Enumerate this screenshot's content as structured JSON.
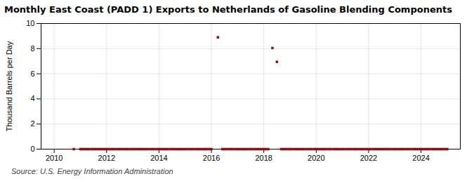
{
  "chart_data": {
    "type": "scatter",
    "title": "Monthly East Coast (PADD 1) Exports to Netherlands of Gasoline Blending Components",
    "ylabel": "Thousand Barrels per Day",
    "source": "Source: U.S. Energy Information Administration",
    "color": "#8b1010",
    "marker": "square",
    "grid": true,
    "xlim": [
      2009.5,
      2025.5
    ],
    "ylim": [
      0,
      10
    ],
    "xticks": [
      2010,
      2012,
      2014,
      2016,
      2018,
      2020,
      2022,
      2024
    ],
    "yticks": [
      0,
      2,
      4,
      6,
      8,
      10
    ],
    "x": [
      2010.75,
      2011.0,
      2011.08,
      2011.17,
      2011.25,
      2011.33,
      2011.42,
      2011.5,
      2011.58,
      2011.67,
      2011.75,
      2011.83,
      2011.92,
      2012.0,
      2012.08,
      2012.17,
      2012.25,
      2012.33,
      2012.42,
      2012.5,
      2012.58,
      2012.67,
      2012.75,
      2012.83,
      2012.92,
      2013.0,
      2013.08,
      2013.17,
      2013.25,
      2013.33,
      2013.42,
      2013.5,
      2013.58,
      2013.67,
      2013.75,
      2013.83,
      2013.92,
      2014.0,
      2014.08,
      2014.17,
      2014.25,
      2014.33,
      2014.42,
      2014.5,
      2014.58,
      2014.67,
      2014.75,
      2014.83,
      2014.92,
      2015.0,
      2015.08,
      2015.17,
      2015.25,
      2015.33,
      2015.42,
      2015.5,
      2015.58,
      2015.67,
      2015.75,
      2015.83,
      2015.92,
      2016.0,
      2016.25,
      2016.42,
      2016.5,
      2016.58,
      2016.67,
      2016.75,
      2016.83,
      2016.92,
      2017.0,
      2017.08,
      2017.17,
      2017.25,
      2017.33,
      2017.42,
      2017.5,
      2017.58,
      2017.67,
      2017.75,
      2017.83,
      2017.92,
      2018.0,
      2018.08,
      2018.17,
      2018.33,
      2018.5,
      2018.67,
      2018.75,
      2018.83,
      2018.92,
      2019.0,
      2019.08,
      2019.17,
      2019.25,
      2019.33,
      2019.42,
      2019.5,
      2019.58,
      2019.67,
      2019.75,
      2019.83,
      2019.92,
      2020.0,
      2020.08,
      2020.17,
      2020.25,
      2020.33,
      2020.42,
      2020.5,
      2020.58,
      2020.67,
      2020.75,
      2020.83,
      2020.92,
      2021.0,
      2021.08,
      2021.17,
      2021.25,
      2021.33,
      2021.42,
      2021.5,
      2021.58,
      2021.67,
      2021.75,
      2021.83,
      2021.92,
      2022.0,
      2022.08,
      2022.17,
      2022.25,
      2022.33,
      2022.42,
      2022.5,
      2022.58,
      2022.67,
      2022.75,
      2022.83,
      2022.92,
      2023.0,
      2023.08,
      2023.17,
      2023.25,
      2023.33,
      2023.42,
      2023.5,
      2023.58,
      2023.67,
      2023.75,
      2023.83,
      2023.92,
      2024.0,
      2024.08,
      2024.17,
      2024.25,
      2024.33,
      2024.42,
      2024.5,
      2024.58,
      2024.67,
      2024.75,
      2024.83,
      2024.92,
      2025.0
    ],
    "values": [
      0.0,
      0.0,
      0.0,
      0.0,
      0.0,
      0.0,
      0.0,
      0.0,
      0.0,
      0.0,
      0.0,
      0.0,
      0.0,
      0.0,
      0.0,
      0.0,
      0.0,
      0.0,
      0.0,
      0.0,
      0.0,
      0.0,
      0.0,
      0.0,
      0.0,
      0.0,
      0.0,
      0.0,
      0.0,
      0.0,
      0.0,
      0.0,
      0.0,
      0.0,
      0.0,
      0.0,
      0.0,
      0.0,
      0.0,
      0.0,
      0.0,
      0.0,
      0.0,
      0.0,
      0.0,
      0.0,
      0.0,
      0.0,
      0.0,
      0.0,
      0.0,
      0.0,
      0.0,
      0.0,
      0.0,
      0.0,
      0.0,
      0.0,
      0.0,
      0.0,
      0.0,
      0.0,
      8.9,
      0.0,
      0.0,
      0.0,
      0.0,
      0.0,
      0.0,
      0.0,
      0.0,
      0.0,
      0.0,
      0.0,
      0.0,
      0.0,
      0.0,
      0.0,
      0.0,
      0.0,
      0.0,
      0.0,
      0.0,
      0.0,
      0.0,
      8.05,
      6.95,
      0.0,
      0.0,
      0.0,
      0.0,
      0.0,
      0.0,
      0.0,
      0.0,
      0.0,
      0.0,
      0.0,
      0.0,
      0.0,
      0.0,
      0.0,
      0.0,
      0.0,
      0.0,
      0.0,
      0.0,
      0.0,
      0.0,
      0.0,
      0.0,
      0.0,
      0.0,
      0.0,
      0.0,
      0.0,
      0.0,
      0.0,
      0.0,
      0.0,
      0.0,
      0.0,
      0.0,
      0.0,
      0.0,
      0.0,
      0.0,
      0.0,
      0.0,
      0.0,
      0.0,
      0.0,
      0.0,
      0.0,
      0.0,
      0.0,
      0.0,
      0.0,
      0.0,
      0.0,
      0.0,
      0.0,
      0.0,
      0.0,
      0.0,
      0.0,
      0.0,
      0.0,
      0.0,
      0.0,
      0.0,
      0.0,
      0.0,
      0.0,
      0.0,
      0.0,
      0.0,
      0.0,
      0.0,
      0.0,
      0.0,
      0.0,
      0.0,
      0.0
    ]
  }
}
